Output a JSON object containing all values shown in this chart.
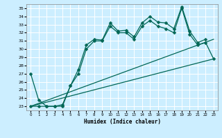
{
  "xlabel": "Humidex (Indice chaleur)",
  "background_color": "#cceeff",
  "grid_color": "#aaddcc",
  "line_color": "#006655",
  "xlim": [
    -0.5,
    23.5
  ],
  "ylim": [
    22.5,
    35.5
  ],
  "yticks": [
    23,
    24,
    25,
    26,
    27,
    28,
    29,
    30,
    31,
    32,
    33,
    34,
    35
  ],
  "xticks": [
    0,
    1,
    2,
    3,
    4,
    5,
    6,
    7,
    8,
    9,
    10,
    11,
    12,
    13,
    14,
    15,
    16,
    17,
    18,
    19,
    20,
    21,
    22,
    23
  ],
  "line1_x": [
    0,
    1,
    2,
    3,
    4,
    5,
    6,
    7,
    8,
    9,
    10,
    11,
    12,
    13,
    14,
    15,
    16,
    17,
    18,
    19,
    20,
    21,
    22
  ],
  "line1_y": [
    27.0,
    23.8,
    23.0,
    23.0,
    23.2,
    25.5,
    27.5,
    30.5,
    31.2,
    31.1,
    33.2,
    32.2,
    32.3,
    31.5,
    33.2,
    34.0,
    33.3,
    33.2,
    32.5,
    35.2,
    32.2,
    30.8,
    31.2
  ],
  "line2_x": [
    0,
    1,
    2,
    3,
    4,
    5,
    6,
    7,
    8,
    9,
    10,
    11,
    12,
    13,
    14,
    15,
    16,
    17,
    18,
    19,
    20,
    21,
    22,
    23
  ],
  "line2_y": [
    23.0,
    23.0,
    23.0,
    23.0,
    23.0,
    25.5,
    27.0,
    30.0,
    31.0,
    31.0,
    32.8,
    32.0,
    32.0,
    31.2,
    32.8,
    33.5,
    32.8,
    32.5,
    32.0,
    35.0,
    31.8,
    30.5,
    30.8,
    28.8
  ],
  "line3_x": [
    0,
    23
  ],
  "line3_y": [
    23.0,
    31.2
  ],
  "line4_x": [
    0,
    23
  ],
  "line4_y": [
    23.0,
    28.8
  ],
  "marker": "D",
  "marker_size": 2.5,
  "line_width": 0.9
}
